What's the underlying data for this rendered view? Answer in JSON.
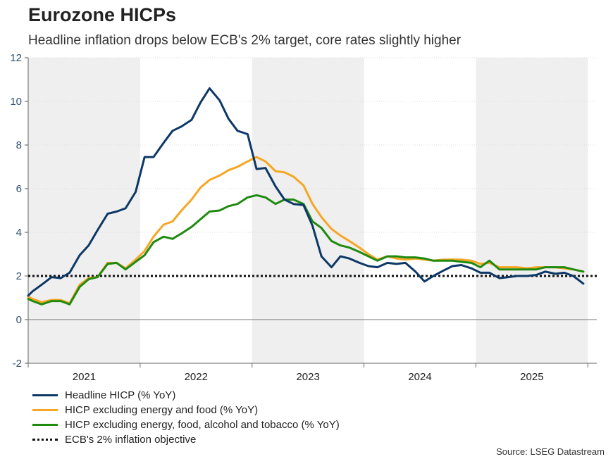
{
  "title": "Eurozone HICPs",
  "subtitle": "Headline inflation drops below ECB's 2% target, core rates slightly higher",
  "source": "Source: LSEG Datastream",
  "chart_data": {
    "type": "line",
    "ylim": [
      -2,
      12
    ],
    "yticks": [
      "-2",
      "0",
      "2",
      "4",
      "6",
      "8",
      "10",
      "12"
    ],
    "ytick_values": [
      -2,
      0,
      2,
      4,
      6,
      8,
      10,
      12
    ],
    "xlim": [
      2021.0,
      2026.08
    ],
    "year_labels": [
      "2021",
      "2022",
      "2023",
      "2024",
      "2025"
    ],
    "shaded_years": [
      2021,
      2023,
      2025
    ],
    "colors": {
      "headline": "#0d3866",
      "core": "#f5a623",
      "core_narrow": "#1f8a10",
      "target": "#111111"
    },
    "series": [
      {
        "name": "Headline HICP (% YoY)",
        "key": "headline",
        "x": [
          2021.0,
          2021.04,
          2021.12,
          2021.21,
          2021.29,
          2021.37,
          2021.46,
          2021.54,
          2021.62,
          2021.71,
          2021.79,
          2021.87,
          2021.96,
          2022.04,
          2022.12,
          2022.21,
          2022.29,
          2022.37,
          2022.46,
          2022.54,
          2022.62,
          2022.71,
          2022.79,
          2022.87,
          2022.96,
          2023.04,
          2023.12,
          2023.21,
          2023.29,
          2023.37,
          2023.46,
          2023.54,
          2023.62,
          2023.71,
          2023.79,
          2023.87,
          2023.96,
          2024.04,
          2024.12,
          2024.21,
          2024.29,
          2024.37,
          2024.46,
          2024.54,
          2024.62,
          2024.71,
          2024.79,
          2024.87,
          2024.96,
          2025.04,
          2025.12,
          2025.21,
          2025.29,
          2025.37,
          2025.46,
          2025.54,
          2025.62,
          2025.71,
          2025.79,
          2025.87,
          2025.96
        ],
        "values": [
          1.1,
          1.3,
          1.6,
          1.95,
          1.9,
          2.15,
          2.95,
          3.4,
          4.1,
          4.85,
          4.95,
          5.1,
          5.85,
          7.45,
          7.45,
          8.1,
          8.65,
          8.85,
          9.15,
          9.95,
          10.6,
          10.05,
          9.2,
          8.65,
          8.5,
          6.9,
          6.95,
          6.1,
          5.5,
          5.3,
          5.25,
          4.3,
          2.9,
          2.4,
          2.9,
          2.8,
          2.6,
          2.45,
          2.4,
          2.6,
          2.55,
          2.6,
          2.2,
          1.75,
          2.0,
          2.25,
          2.45,
          2.5,
          2.35,
          2.15,
          2.15,
          1.9,
          1.95,
          2.0,
          2.0,
          2.05,
          2.2,
          2.1,
          2.15,
          2.0,
          1.65
        ]
      },
      {
        "name": "HICP excluding energy and food (% YoY)",
        "key": "core",
        "x": [
          2021.0,
          2021.04,
          2021.12,
          2021.21,
          2021.29,
          2021.37,
          2021.46,
          2021.54,
          2021.62,
          2021.71,
          2021.79,
          2021.87,
          2021.96,
          2022.04,
          2022.12,
          2022.21,
          2022.29,
          2022.37,
          2022.46,
          2022.54,
          2022.62,
          2022.71,
          2022.79,
          2022.87,
          2022.96,
          2023.04,
          2023.12,
          2023.21,
          2023.29,
          2023.37,
          2023.46,
          2023.54,
          2023.62,
          2023.71,
          2023.79,
          2023.87,
          2023.96,
          2024.04,
          2024.12,
          2024.21,
          2024.29,
          2024.37,
          2024.46,
          2024.54,
          2024.62,
          2024.71,
          2024.79,
          2024.87,
          2024.96,
          2025.04,
          2025.12,
          2025.21,
          2025.29,
          2025.37,
          2025.46,
          2025.54,
          2025.62,
          2025.71,
          2025.79,
          2025.87,
          2025.96
        ],
        "values": [
          1.05,
          0.95,
          0.8,
          0.9,
          0.9,
          0.75,
          1.6,
          1.9,
          1.95,
          2.6,
          2.6,
          2.35,
          2.75,
          3.15,
          3.8,
          4.35,
          4.5,
          5.0,
          5.5,
          6.05,
          6.4,
          6.6,
          6.85,
          7.0,
          7.25,
          7.45,
          7.25,
          6.8,
          6.75,
          6.55,
          6.15,
          5.3,
          4.7,
          4.15,
          3.85,
          3.6,
          3.3,
          3.0,
          2.75,
          2.9,
          2.8,
          2.75,
          2.8,
          2.75,
          2.7,
          2.75,
          2.75,
          2.75,
          2.7,
          2.55,
          2.6,
          2.4,
          2.4,
          2.4,
          2.35,
          2.4,
          2.4,
          2.4,
          2.35,
          2.3,
          2.2
        ]
      },
      {
        "name": "HICP excluding energy, food, alcohol and tobacco (% YoY)",
        "key": "core_narrow",
        "x": [
          2021.0,
          2021.04,
          2021.12,
          2021.21,
          2021.29,
          2021.37,
          2021.46,
          2021.54,
          2021.62,
          2021.71,
          2021.79,
          2021.87,
          2021.96,
          2022.04,
          2022.12,
          2022.21,
          2022.29,
          2022.37,
          2022.46,
          2022.54,
          2022.62,
          2022.71,
          2022.79,
          2022.87,
          2022.96,
          2023.04,
          2023.12,
          2023.21,
          2023.29,
          2023.37,
          2023.46,
          2023.54,
          2023.62,
          2023.71,
          2023.79,
          2023.87,
          2023.96,
          2024.04,
          2024.12,
          2024.21,
          2024.29,
          2024.37,
          2024.46,
          2024.54,
          2024.62,
          2024.71,
          2024.79,
          2024.87,
          2024.96,
          2025.04,
          2025.12,
          2025.21,
          2025.29,
          2025.37,
          2025.46,
          2025.54,
          2025.62,
          2025.71,
          2025.79,
          2025.87,
          2025.96
        ],
        "values": [
          0.95,
          0.85,
          0.7,
          0.85,
          0.85,
          0.7,
          1.5,
          1.85,
          1.95,
          2.55,
          2.6,
          2.3,
          2.65,
          2.95,
          3.55,
          3.8,
          3.7,
          3.95,
          4.25,
          4.6,
          4.95,
          5.0,
          5.2,
          5.3,
          5.6,
          5.7,
          5.6,
          5.3,
          5.5,
          5.5,
          5.3,
          4.5,
          4.2,
          3.6,
          3.4,
          3.3,
          3.1,
          2.9,
          2.7,
          2.9,
          2.9,
          2.85,
          2.85,
          2.8,
          2.7,
          2.7,
          2.7,
          2.65,
          2.6,
          2.4,
          2.7,
          2.3,
          2.3,
          2.3,
          2.3,
          2.3,
          2.4,
          2.4,
          2.4,
          2.3,
          2.2
        ]
      }
    ],
    "target": {
      "name": "ECB's 2% inflation objective",
      "value": 2
    },
    "legend": [
      {
        "label": "Headline HICP (% YoY)",
        "key": "headline",
        "style": "solid"
      },
      {
        "label": "HICP excluding energy and food (% YoY)",
        "key": "core",
        "style": "solid"
      },
      {
        "label": "HICP excluding energy, food, alcohol and tobacco (% YoY)",
        "key": "core_narrow",
        "style": "solid"
      },
      {
        "label": "ECB's 2% inflation objective",
        "key": "target",
        "style": "dotted"
      }
    ]
  }
}
